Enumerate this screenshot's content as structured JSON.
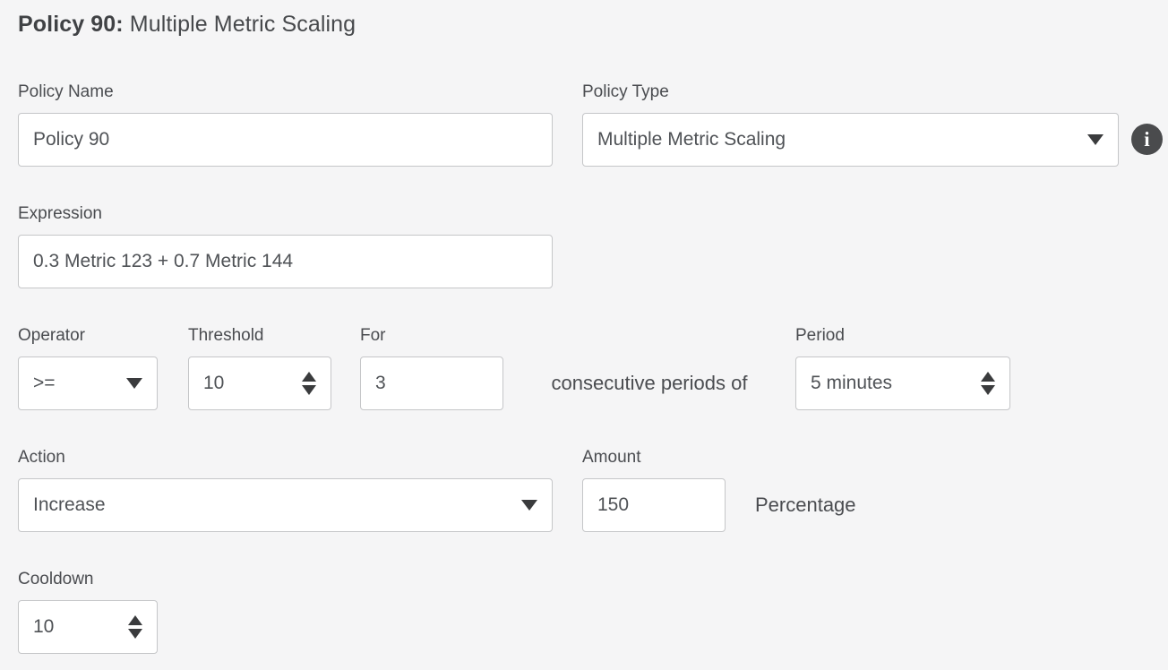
{
  "title": {
    "prefix": "Policy 90:",
    "text": " Multiple Metric Scaling"
  },
  "fields": {
    "policy_name": {
      "label": "Policy Name",
      "value": "Policy 90"
    },
    "policy_type": {
      "label": "Policy Type",
      "value": "Multiple Metric Scaling"
    },
    "expression": {
      "label": "Expression",
      "value": "0.3 Metric 123 + 0.7 Metric 144"
    },
    "operator": {
      "label": "Operator",
      "value": ">="
    },
    "threshold": {
      "label": "Threshold",
      "value": "10"
    },
    "for": {
      "label": "For",
      "value": "3"
    },
    "consecutive_text": "consecutive periods of",
    "period": {
      "label": "Period",
      "value": "5 minutes"
    },
    "action": {
      "label": "Action",
      "value": "Increase"
    },
    "amount": {
      "label": "Amount",
      "value": "150",
      "suffix": "Percentage"
    },
    "cooldown": {
      "label": "Cooldown",
      "value": "10"
    }
  },
  "icons": {
    "info": "i"
  },
  "colors": {
    "background": "#f5f5f6",
    "control_border": "#c5c6c8",
    "text": "#4c4e52",
    "icon_background": "#4a4b4d",
    "arrow": "#3a3b3d"
  }
}
